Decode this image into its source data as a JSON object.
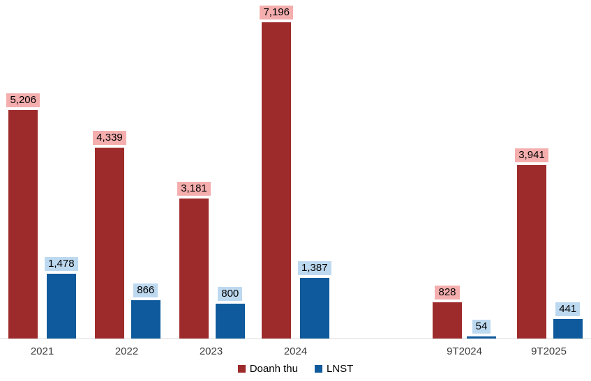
{
  "chart_data": {
    "type": "bar",
    "title": "",
    "xlabel": "",
    "ylabel": "",
    "categories": [
      "2021",
      "2022",
      "2023",
      "2024",
      "",
      "9T2024",
      "9T2025"
    ],
    "series": [
      {
        "name": "Doanh thu",
        "color": "#9e2b2b",
        "label_bg": "#f5aeae",
        "values": [
          5206,
          4339,
          3181,
          7196,
          null,
          828,
          3941
        ],
        "labels": [
          "5,206",
          "4,339",
          "3,181",
          "7,196",
          "",
          "828",
          "3,941"
        ]
      },
      {
        "name": "LNST",
        "color": "#0f5a9c",
        "label_bg": "#bdd9f0",
        "values": [
          1478,
          866,
          800,
          1387,
          null,
          54,
          441
        ],
        "labels": [
          "1,478",
          "866",
          "800",
          "1,387",
          "",
          "54",
          "441"
        ]
      }
    ],
    "ylim": [
      0,
      7720
    ],
    "grid": false,
    "legend_position": "bottom-center",
    "axis_line_color": "#d9d9d9",
    "label_text_color": "#000000"
  }
}
